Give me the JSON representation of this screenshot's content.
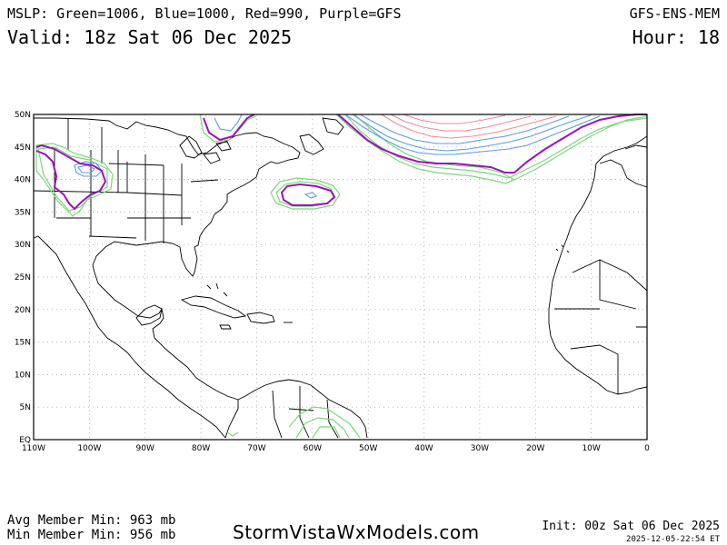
{
  "header": {
    "line1": "MSLP: Green=1006, Blue=1000, Red=990, Purple=GFS",
    "model": "GFS-ENS-MEM",
    "valid": "Valid: 18z Sat 06 Dec 2025",
    "hour": "Hour: 18"
  },
  "map": {
    "lat_labels": [
      "50N",
      "45N",
      "40N",
      "35N",
      "30N",
      "25N",
      "20N",
      "15N",
      "10N",
      "5N",
      "EQ"
    ],
    "lon_labels": [
      "110W",
      "100W",
      "90W",
      "80W",
      "70W",
      "60W",
      "50W",
      "40W",
      "30W",
      "20W",
      "10W",
      "0"
    ],
    "colors": {
      "green": "#7ed67e",
      "blue": "#5c9ae8",
      "red": "#f08a9a",
      "purple": "#9a12b8",
      "coast": "#000000",
      "grid": "#9a9a9a"
    }
  },
  "footer": {
    "avg_min": "Avg Member Min: 963 mb",
    "min_min": "Min Member Min: 956 mb",
    "brand": "StormVistaWxModels.com",
    "init": "Init: 00z Sat 06 Dec 2025",
    "stamp": "2025-12-05-22:54 ET"
  }
}
